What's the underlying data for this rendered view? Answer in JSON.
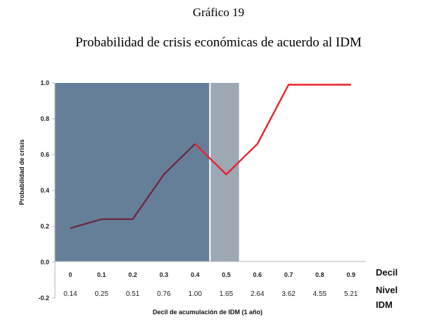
{
  "figure_number": "Gráfico 19",
  "chart_data": {
    "type": "line",
    "title": "Probabilidad de crisis económicas de acuerdo al IDM",
    "xlabel": "Decil de acumulación de IDM (1 año)",
    "ylabel": "Probabilidad de crisis",
    "ylim": [
      -0.2,
      1.0
    ],
    "yticks": [
      "-0.2",
      "0.0",
      "0.2",
      "0.4",
      "0.6",
      "0.8",
      "1.0"
    ],
    "yticks_values": [
      -0.2,
      0,
      0.2,
      0.4,
      0.6,
      0.8,
      1.0
    ],
    "categories": [
      "0",
      "0.1",
      "0.2",
      "0.3",
      "0.4",
      "0.5",
      "0.6",
      "0.7",
      "0.8",
      "0.9"
    ],
    "idm_levels": [
      "0.14",
      "0.25",
      "0.51",
      "0.76",
      "1.00",
      "1.65",
      "2.64",
      "3.62",
      "4.55",
      "5.21"
    ],
    "row_labels": {
      "decil": "Decil",
      "nivel_line1": "Nivel",
      "nivel_line2": "IDM"
    },
    "values": [
      0.19,
      0.24,
      0.24,
      0.49,
      0.66,
      0.49,
      0.66,
      0.99,
      0.99,
      0.99
    ],
    "grid": false,
    "shaded_regions": [
      {
        "from_index": -0.5,
        "to_index": 4.5,
        "color": "#667f99"
      },
      {
        "from_index": 4.5,
        "to_index": 5.5,
        "color": "#9ea7b4"
      }
    ],
    "line_colors": {
      "inside_shaded": "#6b2a42",
      "outside_shaded": "#e8222a"
    }
  }
}
